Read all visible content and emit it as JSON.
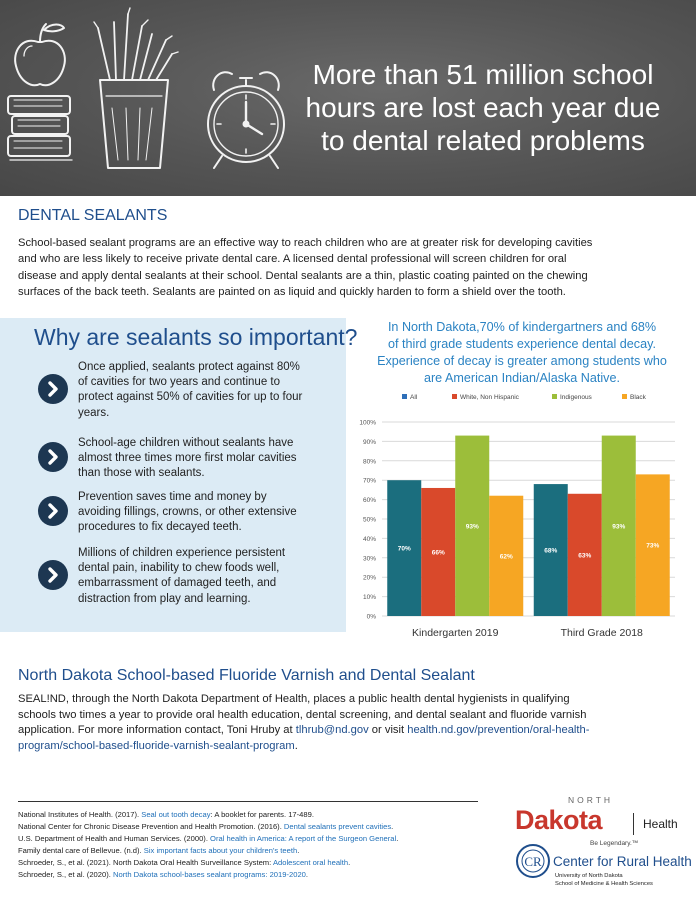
{
  "hero": {
    "title_lines": [
      "More than 51 million school",
      "hours are lost each year due",
      "to dental related problems"
    ]
  },
  "sealants": {
    "heading": "DENTAL SEALANTS",
    "paragraph_lines": [
      "School-based sealant programs are an effective way to reach children who are at greater risk for developing cavities",
      "and who are less likely to receive private dental care. A licensed dental professional will screen children for oral",
      "disease and apply dental sealants at their school. Dental sealants are a thin, plastic coating painted on the chewing",
      "surfaces of the back teeth. Sealants are painted on as liquid and quickly harden to form a shield over the tooth."
    ]
  },
  "why": {
    "heading": "Why are sealants so important?",
    "items": [
      {
        "lines": [
          "Once applied, sealants protect against 80%",
          "of cavities for two years and continue to",
          "protect against 50% of cavities for up to four",
          "years."
        ]
      },
      {
        "lines": [
          "School-age children without sealants have",
          "almost three times more first molar cavities",
          "than those with sealants."
        ]
      },
      {
        "lines": [
          "Prevention saves time and money by",
          "avoiding fillings, crowns, or other extensive",
          "procedures to fix decayed teeth."
        ]
      },
      {
        "lines": [
          "Millions of children experience persistent",
          "dental pain, inability to chew foods well,",
          "embarrassment of damaged teeth, and",
          "distraction from play and learning."
        ]
      }
    ]
  },
  "chart_caption": {
    "lines": [
      "In North Dakota,70% of kindergartners and 68%",
      "of third grade students experience dental decay.",
      "Experience of decay is greater among students who",
      "are American Indian/Alaska Native."
    ]
  },
  "chart_data": {
    "type": "bar",
    "categories": [
      "Kindergarten 2019",
      "Third Grade 2018"
    ],
    "series": [
      {
        "name": "All",
        "values": [
          70,
          68
        ],
        "labels": [
          "70%",
          "68%"
        ],
        "color": "#1b6e7e"
      },
      {
        "name": "White, Non Hispanic",
        "values": [
          66,
          63
        ],
        "labels": [
          "66%",
          "63%"
        ],
        "color": "#d9492b"
      },
      {
        "name": "Indigenous",
        "values": [
          93,
          93
        ],
        "labels": [
          "93%",
          "93%"
        ],
        "color": "#9cbe3a"
      },
      {
        "name": "Black",
        "values": [
          62,
          73
        ],
        "labels": [
          "62%",
          "73%"
        ],
        "color": "#f6a623"
      }
    ],
    "ylim": [
      0,
      100
    ],
    "yticks": [
      "0%",
      "10%",
      "20%",
      "30%",
      "40%",
      "50%",
      "60%",
      "70%",
      "80%",
      "90%",
      "100%"
    ],
    "legend_colors": [
      "#2e6fb8",
      "#d9492b",
      "#9cbe3a",
      "#f6a623"
    ],
    "legend_position": "top",
    "grid": true
  },
  "fluoride": {
    "heading": "North Dakota School-based Fluoride Varnish and Dental Sealant",
    "line1": "SEAL!ND, through the North Dakota Department of Health, places a public health dental hygienists in qualifying",
    "line2": "schools two times a year to provide oral health education, dental screening, and dental sealant and fluoride varnish",
    "line3_pre": "application. For more information contact, Toni Hruby at ",
    "email": "tlhrub@nd.gov",
    "line3_mid": " or visit ",
    "url_part1": "health.nd.gov/prevention/oral-health-",
    "url_part2": "program/school-based-fluoride-varnish-sealant-program",
    "line4_end": "."
  },
  "references": [
    {
      "pre": "National Institutes of Health. (2017). ",
      "link": "Seal out tooth decay",
      "post": ": A booklet for parents. 17-489."
    },
    {
      "pre": "National Center for Chronic Disease Prevention and Health Promotion. (2016). ",
      "link": "Dental sealants prevent cavities",
      "post": "."
    },
    {
      "pre": "U.S. Department of Health and Human Services. (2000). ",
      "link": "Oral health in America: A report of the Surgeon General",
      "post": "."
    },
    {
      "pre": "Family dental care of Bellevue. (n.d). ",
      "link": "Six important facts about your children's teeth",
      "post": "."
    },
    {
      "pre": "Schroeder, S., et al. (2021). North Dakota Oral Health Surveillance System: ",
      "link": "Adolescent oral health",
      "post": "."
    },
    {
      "pre": "Schroeder, S., et al. (2020). ",
      "link": "North Dakota school-bases sealant programs: 2019-2020",
      "post": "."
    }
  ],
  "logos": {
    "nd_small": "NORTH",
    "nd_name": "Dakota",
    "nd_health": "Health",
    "nd_tagline": "Be Legendary.™",
    "crh_title": "Center for Rural Health",
    "crh_sub1": "University of North Dakota",
    "crh_sub2": "School of Medicine & Health Sciences"
  }
}
